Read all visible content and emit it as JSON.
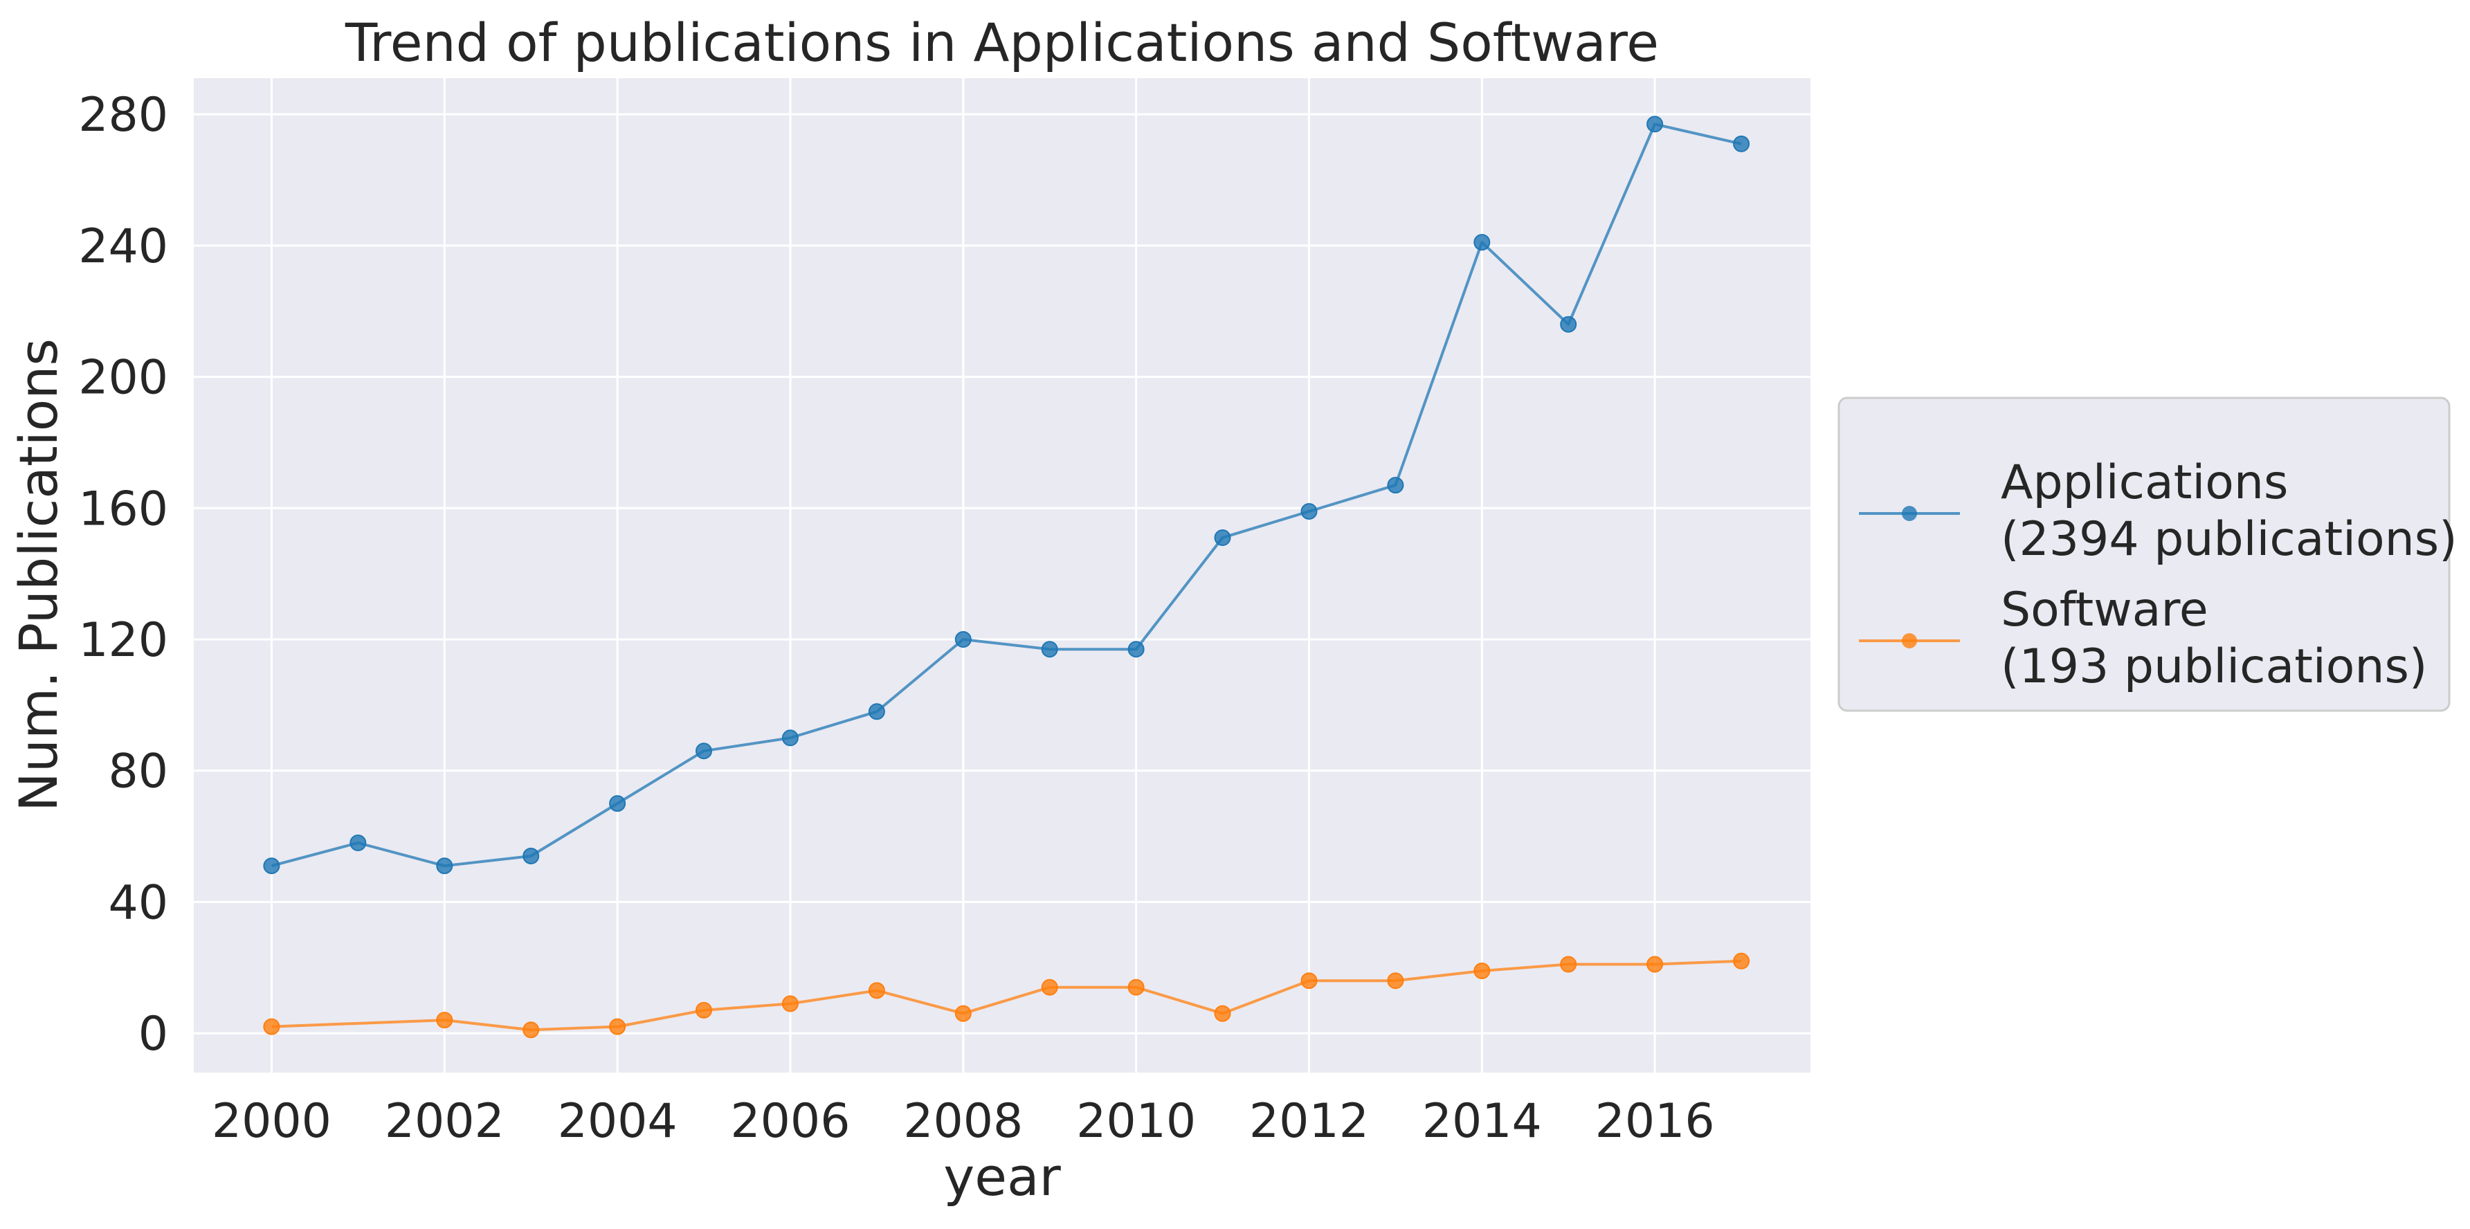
{
  "chart_data": {
    "type": "line",
    "title": "Trend of publications in Applications and Software",
    "xlabel": "year",
    "ylabel": "Num. Publications",
    "x": [
      2000,
      2001,
      2002,
      2003,
      2004,
      2005,
      2006,
      2007,
      2008,
      2009,
      2010,
      2011,
      2012,
      2013,
      2014,
      2015,
      2016,
      2017
    ],
    "series": [
      {
        "name": "Applications\n(2394 publications)",
        "values": [
          51,
          58,
          51,
          54,
          70,
          86,
          90,
          98,
          120,
          117,
          117,
          151,
          159,
          167,
          241,
          216,
          277,
          271
        ],
        "color": "#1f77b4"
      },
      {
        "name": "Software\n(193 publications)",
        "values": [
          2,
          null,
          4,
          1,
          2,
          7,
          9,
          13,
          6,
          14,
          14,
          6,
          16,
          16,
          19,
          21,
          21,
          22
        ],
        "color": "#ff7f0e"
      }
    ],
    "xticks": [
      2000,
      2002,
      2004,
      2006,
      2008,
      2010,
      2012,
      2014,
      2016
    ],
    "xlim": [
      1999.1,
      2017.8
    ],
    "yticks": [
      0,
      40,
      80,
      120,
      160,
      200,
      240,
      280
    ],
    "ylim": [
      -12,
      291
    ],
    "grid": true,
    "legend_position": "right, outside plot, centered vertically",
    "background_color": "#eaeaf2",
    "grid_color": "#ffffff"
  }
}
